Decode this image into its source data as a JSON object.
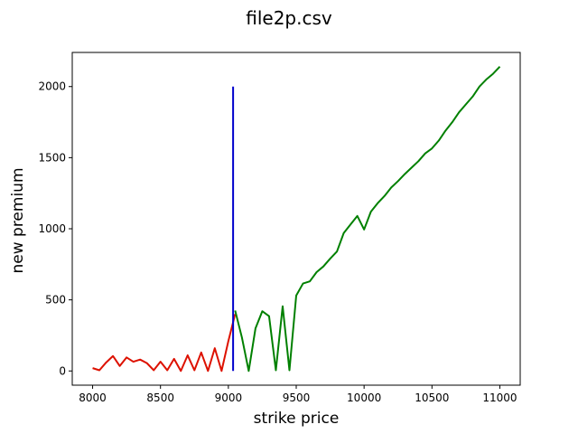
{
  "chart_data": {
    "type": "line",
    "title": "file2p.csv",
    "xlabel": "strike price",
    "ylabel": "new premium",
    "xlim": [
      7850,
      11150
    ],
    "ylim": [
      -100,
      2240
    ],
    "xticks": [
      8000,
      8500,
      9000,
      9500,
      10000,
      10500,
      11000
    ],
    "yticks": [
      0,
      500,
      1000,
      1500,
      2000
    ],
    "grid": false,
    "series": [
      {
        "color": "#dd1100",
        "x": [
          8000,
          8050,
          8100,
          8150,
          8200,
          8250,
          8300,
          8350,
          8400,
          8450,
          8500,
          8550,
          8600,
          8650,
          8700,
          8750,
          8800,
          8850,
          8900,
          8950,
          9000,
          9050
        ],
        "y": [
          20,
          5,
          60,
          105,
          35,
          95,
          65,
          80,
          55,
          5,
          65,
          5,
          85,
          0,
          110,
          5,
          130,
          0,
          160,
          0,
          210,
          400
        ]
      },
      {
        "color": "#008000",
        "x": [
          9050,
          9100,
          9150,
          9200,
          9250,
          9300,
          9350,
          9400,
          9450,
          9500,
          9550,
          9600,
          9650,
          9700,
          9750,
          9800,
          9850,
          9900,
          9950,
          10000,
          10050,
          10100,
          10150,
          10200,
          10250,
          10300,
          10350,
          10400,
          10450,
          10500,
          10550,
          10600,
          10650,
          10700,
          10750,
          10800,
          10850,
          10900,
          10950,
          11000
        ],
        "y": [
          425,
          235,
          0,
          300,
          420,
          385,
          5,
          455,
          5,
          530,
          615,
          630,
          695,
          735,
          790,
          840,
          970,
          1030,
          1090,
          995,
          1120,
          1180,
          1230,
          1290,
          1335,
          1385,
          1430,
          1475,
          1530,
          1565,
          1620,
          1690,
          1750,
          1820,
          1875,
          1930,
          2000,
          2050,
          2090,
          2140
        ]
      },
      {
        "color": "#0000cc",
        "x": [
          9035,
          9035
        ],
        "y": [
          0,
          2000
        ]
      }
    ]
  }
}
